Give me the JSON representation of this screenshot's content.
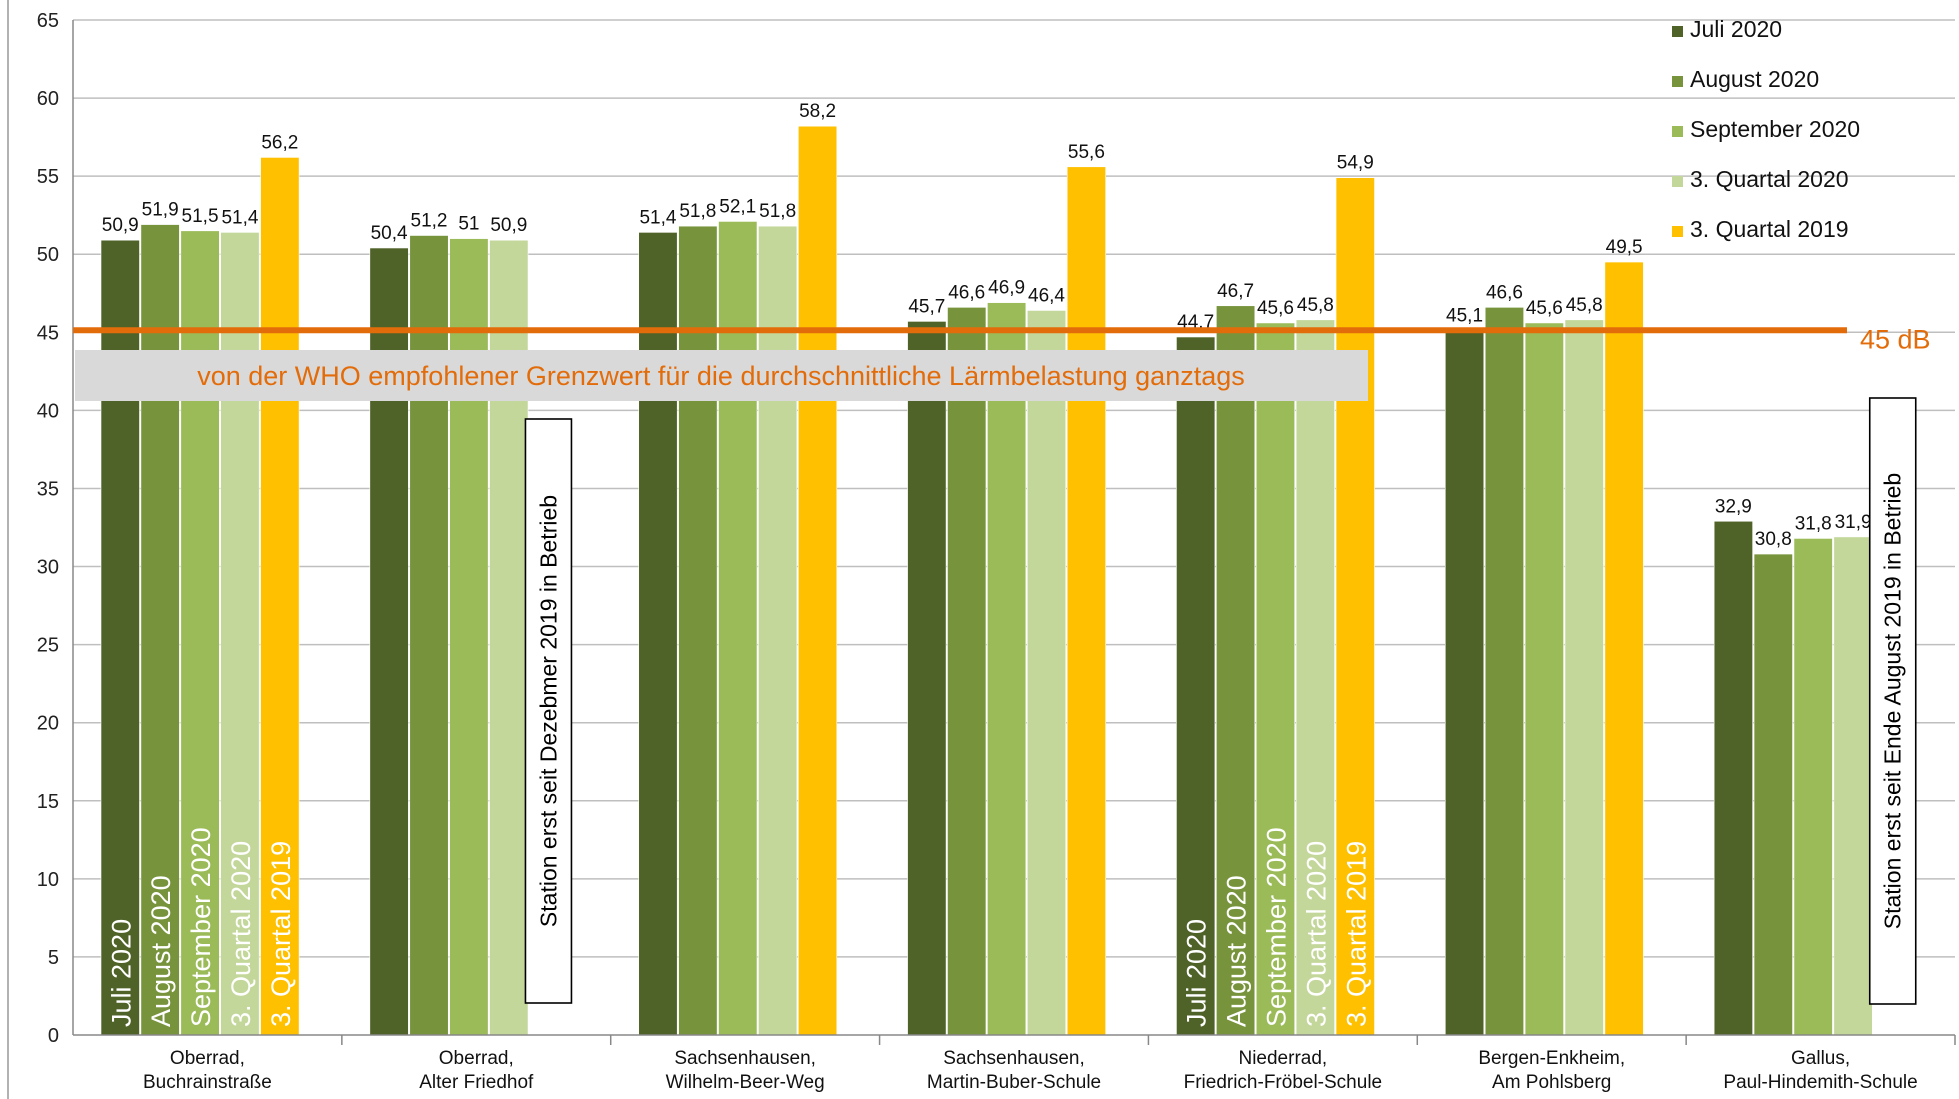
{
  "chart_data": {
    "type": "bar",
    "title": "",
    "xlabel": "",
    "ylabel": "",
    "ylim": [
      0,
      65
    ],
    "yticks": [
      0,
      5,
      10,
      15,
      20,
      25,
      30,
      35,
      40,
      45,
      50,
      55,
      60,
      65
    ],
    "grid": true,
    "legend_position": "top-right",
    "categories": [
      [
        "Oberrad,",
        "Buchrainstraße"
      ],
      [
        "Oberrad,",
        "Alter Friedhof"
      ],
      [
        "Sachsenhausen,",
        "Wilhelm-Beer-Weg"
      ],
      [
        "Sachsenhausen,",
        "Martin-Buber-Schule"
      ],
      [
        "Niederrad,",
        "Friedrich-Fröbel-Schule"
      ],
      [
        "Bergen-Enkheim,",
        "Am Pohlsberg"
      ],
      [
        "Gallus,",
        "Paul-Hindemith-Schule"
      ]
    ],
    "series": [
      {
        "name": "Juli 2020",
        "color": "#4f6228",
        "values": [
          50.9,
          50.4,
          51.4,
          45.7,
          44.7,
          45.1,
          32.9
        ],
        "labels": [
          "50,9",
          "50,4",
          "51,4",
          "45,7",
          "44,7",
          "45,1",
          "32,9"
        ]
      },
      {
        "name": "August 2020",
        "color": "#77933c",
        "values": [
          51.9,
          51.2,
          51.8,
          46.6,
          46.7,
          46.6,
          30.8
        ],
        "labels": [
          "51,9",
          "51,2",
          "51,8",
          "46,6",
          "46,7",
          "46,6",
          "30,8"
        ]
      },
      {
        "name": "September 2020",
        "color": "#9bbb59",
        "values": [
          51.5,
          51.0,
          52.1,
          46.9,
          45.6,
          45.6,
          31.8
        ],
        "labels": [
          "51,5",
          "51",
          "52,1",
          "46,9",
          "45,6",
          "45,6",
          "31,8"
        ]
      },
      {
        "name": "3. Quartal 2020",
        "color": "#c4d79b",
        "values": [
          51.4,
          50.9,
          51.8,
          46.4,
          45.8,
          45.8,
          31.9
        ],
        "labels": [
          "51,4",
          "50,9",
          "51,8",
          "46,4",
          "45,8",
          "45,8",
          "31,9"
        ]
      },
      {
        "name": "3. Quartal 2019",
        "color": "#ffc000",
        "values": [
          56.2,
          null,
          58.2,
          55.6,
          54.9,
          49.5,
          null
        ],
        "labels": [
          "56,2",
          "",
          "58,2",
          "55,6",
          "54,9",
          "49,5",
          ""
        ]
      }
    ],
    "inbar_label_groups": [
      0,
      4
    ],
    "reference_line": {
      "value": 45,
      "label": "45 dB",
      "color": "#e36c0a"
    },
    "band_text": "von der WHO empfohlener Grenzwert für die durchschnittliche Lärmbelastung ganztags",
    "notes": [
      {
        "group": 1,
        "slot": 4,
        "text": "Station erst seit Dezebmer 2019 in Betrieb"
      },
      {
        "group": 6,
        "slot": 4,
        "text": "Station erst seit Ende August 2019 in Betrieb"
      }
    ]
  }
}
